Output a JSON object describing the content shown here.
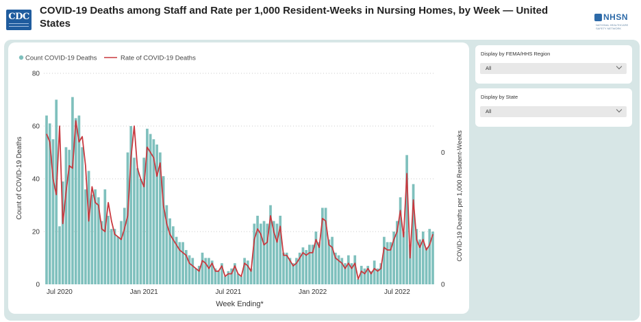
{
  "header": {
    "title": "COVID-19 Deaths among Staff and Rate per 1,000 Resident-Weeks in Nursing Homes, by Week — United States",
    "cdc_logo_text": "CDC",
    "nhsn_logo_text": "NHSN",
    "nhsn_logo_subtitle": "NATIONAL HEALTHCARE SAFETY NETWORK"
  },
  "filters": [
    {
      "label": "Display by FEMA/HHS Region",
      "value": "All"
    },
    {
      "label": "Display by State",
      "value": "All"
    }
  ],
  "colors": {
    "bars": "#7fc0bd",
    "line": "#c8393f",
    "panel_bg": "#d7e6e6",
    "logo_blue": "#1f5c9e"
  },
  "chart_data": {
    "type": "bar",
    "xlabel": "Week Ending*",
    "ylabel": "Count of COVID-19 Deaths",
    "y2label": "COVID-19 Deaths per 1,000 Resident-Weeks",
    "ylim": [
      0,
      80
    ],
    "yticks": [
      0,
      20,
      40,
      60,
      80
    ],
    "y2ticks": [
      "0",
      "0"
    ],
    "grid": true,
    "legend": "top-left",
    "x_ticks": [
      {
        "label": "Jul 2020",
        "date": "2020-07-05"
      },
      {
        "label": "Jan 2021",
        "date": "2021-01-03"
      },
      {
        "label": "Jul 2021",
        "date": "2021-07-04"
      },
      {
        "label": "Jan 2022",
        "date": "2022-01-02"
      },
      {
        "label": "Jul 2022",
        "date": "2022-07-03"
      }
    ],
    "series": [
      {
        "name": "Count COVID-19 Deaths",
        "type": "bar",
        "x": [
          "2020-06-07",
          "2020-06-14",
          "2020-06-21",
          "2020-06-28",
          "2020-07-05",
          "2020-07-12",
          "2020-07-19",
          "2020-07-26",
          "2020-08-02",
          "2020-08-09",
          "2020-08-16",
          "2020-08-23",
          "2020-08-30",
          "2020-09-06",
          "2020-09-13",
          "2020-09-20",
          "2020-09-27",
          "2020-10-04",
          "2020-10-11",
          "2020-10-18",
          "2020-10-25",
          "2020-11-01",
          "2020-11-08",
          "2020-11-15",
          "2020-11-22",
          "2020-11-29",
          "2020-12-06",
          "2020-12-13",
          "2020-12-20",
          "2020-12-27",
          "2021-01-03",
          "2021-01-10",
          "2021-01-17",
          "2021-01-24",
          "2021-01-31",
          "2021-02-07",
          "2021-02-14",
          "2021-02-21",
          "2021-02-28",
          "2021-03-07",
          "2021-03-14",
          "2021-03-21",
          "2021-03-28",
          "2021-04-04",
          "2021-04-11",
          "2021-04-18",
          "2021-04-25",
          "2021-05-02",
          "2021-05-09",
          "2021-05-16",
          "2021-05-23",
          "2021-05-30",
          "2021-06-06",
          "2021-06-13",
          "2021-06-20",
          "2021-06-27",
          "2021-07-04",
          "2021-07-11",
          "2021-07-18",
          "2021-07-25",
          "2021-08-01",
          "2021-08-08",
          "2021-08-15",
          "2021-08-22",
          "2021-08-29",
          "2021-09-05",
          "2021-09-12",
          "2021-09-19",
          "2021-09-26",
          "2021-10-03",
          "2021-10-10",
          "2021-10-17",
          "2021-10-24",
          "2021-10-31",
          "2021-11-07",
          "2021-11-14",
          "2021-11-21",
          "2021-11-28",
          "2021-12-05",
          "2021-12-12",
          "2021-12-19",
          "2021-12-26",
          "2022-01-02",
          "2022-01-09",
          "2022-01-16",
          "2022-01-23",
          "2022-01-30",
          "2022-02-06",
          "2022-02-13",
          "2022-02-20",
          "2022-02-27",
          "2022-03-06",
          "2022-03-13",
          "2022-03-20",
          "2022-03-27",
          "2022-04-03",
          "2022-04-10",
          "2022-04-17",
          "2022-04-24",
          "2022-05-01",
          "2022-05-08",
          "2022-05-15",
          "2022-05-22",
          "2022-05-29",
          "2022-06-05",
          "2022-06-12",
          "2022-06-19",
          "2022-06-26",
          "2022-07-03",
          "2022-07-10",
          "2022-07-17",
          "2022-07-24",
          "2022-07-31",
          "2022-08-07",
          "2022-08-14",
          "2022-08-21",
          "2022-08-28",
          "2022-09-04",
          "2022-09-11",
          "2022-09-18"
        ],
        "values": [
          64,
          61,
          55,
          70,
          22,
          39,
          52,
          51,
          71,
          63,
          64,
          52,
          36,
          43,
          34,
          36,
          33,
          24,
          36,
          26,
          21,
          21,
          18,
          24,
          29,
          50,
          60,
          48,
          44,
          40,
          48,
          59,
          57,
          55,
          53,
          50,
          41,
          30,
          25,
          22,
          18,
          16,
          16,
          13,
          11,
          10,
          6,
          7,
          12,
          10,
          10,
          9,
          6,
          5,
          8,
          3,
          5,
          6,
          8,
          4,
          3,
          10,
          9,
          6,
          23,
          26,
          23,
          24,
          23,
          30,
          24,
          23,
          26,
          12,
          12,
          10,
          8,
          10,
          12,
          14,
          13,
          15,
          15,
          20,
          16,
          29,
          29,
          17,
          18,
          12,
          11,
          10,
          8,
          11,
          8,
          11,
          2,
          7,
          6,
          7,
          5,
          9,
          6,
          8,
          18,
          16,
          16,
          20,
          24,
          33,
          20,
          49,
          15,
          38,
          21,
          17,
          20,
          14,
          21,
          20
        ]
      },
      {
        "name": "Rate of COVID-19 Deaths",
        "type": "line",
        "values": [
          57,
          54,
          40,
          34,
          60,
          23,
          35,
          45,
          44,
          62,
          54,
          56,
          45,
          24,
          37,
          31,
          30,
          21,
          20,
          31,
          24,
          19,
          18,
          17,
          21,
          26,
          48,
          60,
          44,
          40,
          37,
          52,
          50,
          48,
          41,
          46,
          30,
          23,
          19,
          17,
          15,
          13,
          12,
          11,
          8,
          7,
          6,
          5,
          9,
          8,
          6,
          8,
          5,
          5,
          7,
          3,
          4,
          4,
          7,
          4,
          3,
          8,
          7,
          5,
          17,
          21,
          19,
          15,
          16,
          26,
          20,
          16,
          22,
          11,
          11,
          9,
          7,
          8,
          10,
          12,
          11,
          12,
          12,
          17,
          14,
          25,
          24,
          15,
          14,
          10,
          9,
          8,
          6,
          8,
          6,
          8,
          2,
          5,
          4,
          6,
          4,
          6,
          5,
          6,
          14,
          13,
          13,
          17,
          20,
          28,
          18,
          42,
          10,
          32,
          17,
          14,
          17,
          13,
          15,
          19
        ]
      }
    ]
  }
}
